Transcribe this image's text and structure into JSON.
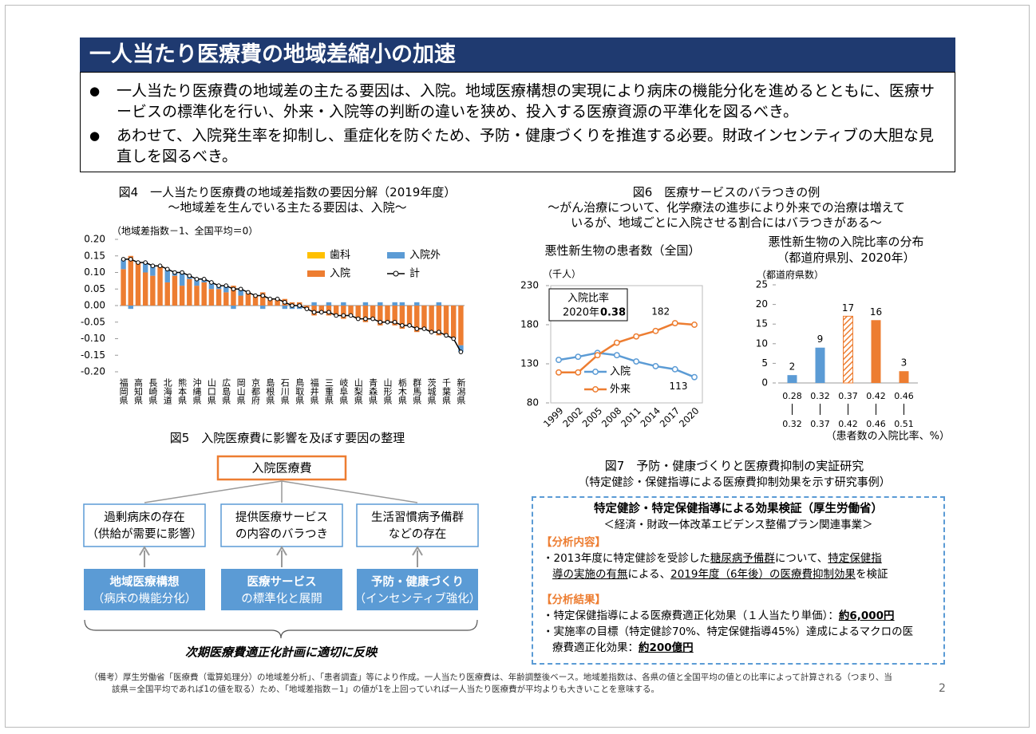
{
  "header": {
    "title": "一人当たり医療費の地域差縮小の加速"
  },
  "bullets": [
    "一人当たり医療費の地域差の主たる要因は、入院。地域医療構想の実現により病床の機能分化を進めるとともに、医療サービスの標準化を行い、外来・入院等の判断の違いを狭め、投入する医療資源の平準化を図るべき。",
    "あわせて、入院発生率を抑制し、重症化を防ぐため、予防・健康づくりを推進する必要。財政インセンティブの大胆な見直しを図るべき。"
  ],
  "chart_data": [
    {
      "type": "stacked_bar_line",
      "title": "図4　一人当たり医療費の地域差指数の要因分解（2019年度）",
      "subtitle": "～地域差を生んでいる主たる要因は、入院～",
      "y_label": "（地域差指数－1、全国平均＝0）",
      "categories": [
        "福岡県",
        null,
        "高知県",
        null,
        "長崎県",
        null,
        "北海道",
        null,
        "熊本県",
        null,
        "沖縄県",
        null,
        "山口県",
        null,
        "広島県",
        null,
        "岡山県",
        null,
        "京都府",
        null,
        "島根県",
        null,
        "石川県",
        null,
        "鳥取県",
        null,
        "福井県",
        null,
        "三重県",
        null,
        "岐阜県",
        null,
        "山梨県",
        null,
        "青森県",
        null,
        "山形県",
        null,
        "栃木県",
        null,
        "群馬県",
        null,
        "茨城県",
        null,
        "千葉県",
        null,
        "新潟県"
      ],
      "series": [
        {
          "name": "歯科",
          "type": "bar",
          "color": "#ffc000",
          "values": [
            0,
            0,
            0,
            0,
            0,
            0,
            0,
            0,
            0,
            0,
            0,
            0,
            0,
            0,
            0,
            0,
            0,
            0,
            0,
            0,
            0,
            0,
            0,
            0,
            0,
            0,
            0,
            0,
            0,
            0,
            0,
            0,
            0,
            0,
            0,
            0,
            0,
            0,
            0,
            0,
            0,
            0,
            0,
            0,
            0,
            0,
            0
          ]
        },
        {
          "name": "入院外",
          "type": "bar",
          "color": "#5b9bd5",
          "values": [
            0.03,
            -0.01,
            0.0,
            0.03,
            0.03,
            0.0,
            0.04,
            0.01,
            0.04,
            0.01,
            0.02,
            0.01,
            0.02,
            0.01,
            0.02,
            -0.01,
            0.02,
            0.0,
            0.0,
            -0.01,
            0.0,
            0.0,
            -0.01,
            -0.01,
            -0.01,
            0.0,
            0.01,
            0.0,
            0.01,
            0.0,
            0.01,
            0.0,
            0.0,
            0.01,
            0.0,
            0.01,
            0.0,
            0.01,
            0.01,
            0.0,
            0.01,
            0.0,
            0.0,
            0.01,
            0.0,
            0.0,
            -0.02
          ]
        },
        {
          "name": "入院",
          "type": "bar",
          "color": "#ed7d31",
          "values": [
            0.11,
            0.15,
            0.13,
            0.1,
            0.09,
            0.12,
            0.07,
            0.09,
            0.06,
            0.08,
            0.06,
            0.07,
            0.05,
            0.05,
            0.04,
            0.06,
            0.03,
            0.04,
            0.03,
            0.04,
            0.02,
            0.02,
            0.02,
            0.01,
            0.01,
            -0.01,
            -0.03,
            -0.02,
            -0.03,
            -0.03,
            -0.04,
            -0.03,
            -0.04,
            -0.05,
            -0.04,
            -0.06,
            -0.05,
            -0.06,
            -0.07,
            -0.06,
            -0.08,
            -0.07,
            -0.08,
            -0.09,
            -0.09,
            -0.1,
            -0.12
          ]
        },
        {
          "name": "計",
          "type": "line",
          "color": "#000000",
          "values": [
            0.14,
            0.14,
            0.13,
            0.13,
            0.12,
            0.12,
            0.11,
            0.1,
            0.1,
            0.09,
            0.08,
            0.08,
            0.07,
            0.06,
            0.06,
            0.05,
            0.05,
            0.04,
            0.03,
            0.03,
            0.02,
            0.02,
            0.01,
            0.0,
            0.0,
            -0.01,
            -0.02,
            -0.02,
            -0.02,
            -0.03,
            -0.03,
            -0.03,
            -0.04,
            -0.04,
            -0.04,
            -0.05,
            -0.05,
            -0.05,
            -0.06,
            -0.06,
            -0.07,
            -0.07,
            -0.08,
            -0.08,
            -0.09,
            -0.1,
            -0.14
          ]
        }
      ],
      "ylim": [
        -0.2,
        0.2
      ],
      "yticks": [
        {
          "value": 0.2,
          "label": "0.20"
        },
        {
          "value": 0.15,
          "label": "0.15"
        },
        {
          "value": 0.1,
          "label": "0.10"
        },
        {
          "value": 0.05,
          "label": "0.05"
        },
        {
          "value": 0,
          "label": "0.00"
        },
        {
          "value": -0.05,
          "label": "-0.05"
        },
        {
          "value": -0.1,
          "label": "-0.10"
        },
        {
          "value": -0.15,
          "label": "-0.15"
        },
        {
          "value": -0.2,
          "label": "-0.20"
        }
      ],
      "grid": false,
      "legend": "upper right"
    },
    {
      "type": "line",
      "title": "悪性新生物の患者数（全国）",
      "y_label": "（千人）",
      "annotation": [
        "入院比率",
        "2020年",
        "0.38"
      ],
      "x": [
        1999,
        2002,
        2005,
        2008,
        2011,
        2014,
        2017,
        2020
      ],
      "xlim": [
        1999,
        2020
      ],
      "series": [
        {
          "name": "入院",
          "color": "#5b9bd5",
          "values": [
            135,
            139,
            144,
            141,
            133,
            127,
            123,
            113
          ]
        },
        {
          "name": "外来",
          "color": "#ed7d31",
          "values": [
            119,
            119,
            141,
            157,
            165,
            172,
            182,
            180
          ]
        }
      ],
      "ylim": [
        80,
        230
      ],
      "yticks": [
        80,
        130,
        180,
        230
      ],
      "grid": false
    },
    {
      "type": "bar",
      "title": "悪性新生物の入院比率の分布",
      "subtitle": "（都道府県別、2020年）",
      "y_label": "（都道府県数）",
      "x_label": "（患者数の入院比率、%）",
      "categories": [
        {
          "from": "0.28",
          "to": "0.32"
        },
        {
          "from": "0.32",
          "to": "0.37"
        },
        {
          "from": "0.37",
          "to": "0.42"
        },
        {
          "from": "0.42",
          "to": "0.46"
        },
        {
          "from": "0.46",
          "to": "0.51"
        }
      ],
      "values": [
        2,
        9,
        17,
        16,
        3
      ],
      "colors": [
        "#5b9bd5",
        "#5b9bd5",
        "#ed7d31",
        "#ed7d31",
        "#ed7d31"
      ],
      "patterns": [
        "solid",
        "solid",
        "hatched",
        "solid",
        "solid"
      ],
      "ylim": [
        0,
        25
      ],
      "yticks": [
        0,
        5,
        10,
        15,
        20,
        25
      ],
      "grid": false
    }
  ],
  "figure6": {
    "title": "図6　医療サービスのバラつきの例",
    "subtitle": [
      "～がん治療について、化学療法の進歩により外来での治療は増えて",
      "いるが、地域ごとに入院させる割合にはバラつきがある～"
    ]
  },
  "figure5": {
    "title": "図5　入院医療費に影響を及ぼす要因の整理",
    "top": "入院医療費",
    "middle": [
      [
        "過剰病床の存在",
        "（供給が需要に影響）"
      ],
      [
        "提供医療サービス",
        "の内容のバラつき"
      ],
      [
        "生活習慣病予備群",
        "などの存在"
      ]
    ],
    "bottom": [
      [
        "地域医療構想",
        "（病床の機能分化）"
      ],
      [
        "医療サービス",
        "の標準化と展開"
      ],
      [
        "予防・健康づくり",
        "（インセンティブ強化）"
      ]
    ],
    "conclusion": "次期医療費適正化計画に適切に反映"
  },
  "figure7": {
    "title": "図7　予防・健康づくりと医療費抑制の実証研究",
    "subtitle": "（特定健診・保健指導による医療費抑制効果を示す研究事例）",
    "heading": "特定健診・特定保健指導による効果検証（厚生労働省）",
    "subheading": "＜経済・財政一体改革エビデンス整備プラン関連事業＞",
    "sections": [
      {
        "label": "【分析内容】",
        "lines": [
          [
            "・2013年度に特定健診を受診した",
            {
              "text": "糖尿病予備群",
              "underline": true
            },
            "について、",
            {
              "text": "特定保健指",
              "underline": true
            }
          ],
          [
            {
              "text": "導の実施の有無",
              "underline": true
            },
            "による、",
            {
              "text": "2019年度（6年後）の医療費抑制効果",
              "underline": true
            },
            "を検証"
          ]
        ]
      },
      {
        "label": "【分析結果】",
        "lines": [
          [
            "・特定保健指導による医療費適正化効果（１人当たり単価）：",
            {
              "text": "約6,000円",
              "underline": true,
              "bold": true
            }
          ],
          [
            "・実施率の目標（特定健診70%、特定保健指導45%）達成によるマクロの医"
          ],
          [
            "療費適正化効果：",
            {
              "text": "約200億円",
              "underline": true,
              "bold": true
            }
          ]
        ]
      }
    ]
  },
  "footnote": [
    "（備考）厚生労働省「医療費（電算処理分）の地域差分析」、「患者調査」等により作成。一人当たり医療費は、年齢調整後ベース。地域差指数は、各県の値と全国平均の値との比率によって計算される（つまり、当",
    "該県＝全国平均であれば1の値を取る）ため、「地域差指数－1」の値が1を上回っていれば一人当たり医療費が平均よりも大きいことを意味する。"
  ],
  "page_number": "2"
}
